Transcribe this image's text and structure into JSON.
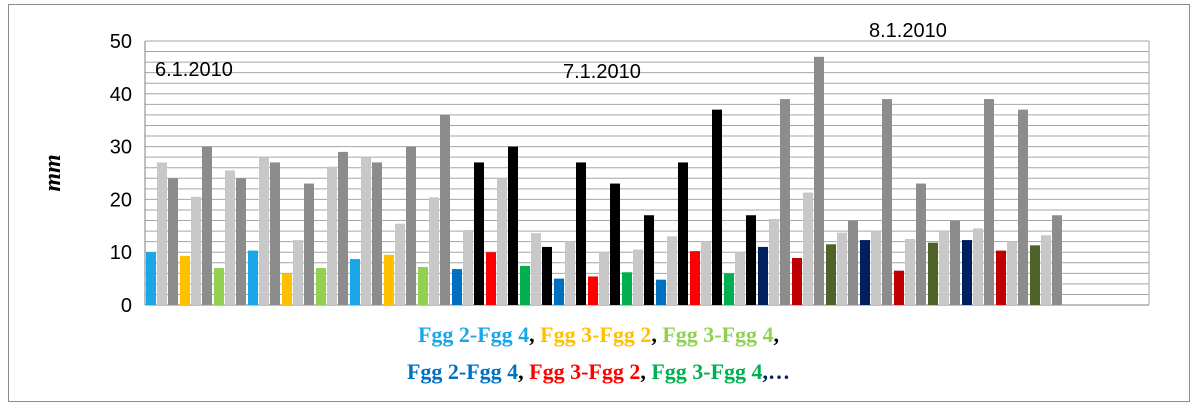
{
  "chart_data": {
    "type": "bar",
    "ylabel": "mm",
    "ylim": [
      0,
      50
    ],
    "yticks": [
      0,
      10,
      20,
      30,
      40,
      50
    ],
    "grid": "horizontal",
    "annotations": [
      {
        "text": "6.1.2010",
        "x": 1
      },
      {
        "text": "7.1.2010",
        "x": 13
      },
      {
        "text": "8.1.2010",
        "x": 22
      }
    ],
    "groups": [
      {
        "x": 1,
        "values": [
          10,
          27,
          24
        ],
        "colors": [
          "#1aa7e8",
          "#c8c8c8",
          "#8c8c8c"
        ]
      },
      {
        "x": 2,
        "values": [
          9.3,
          20.5,
          30
        ],
        "colors": [
          "#ffc000",
          "#c8c8c8",
          "#8c8c8c"
        ]
      },
      {
        "x": 3,
        "values": [
          7,
          25.5,
          24
        ],
        "colors": [
          "#92d050",
          "#c8c8c8",
          "#8c8c8c"
        ]
      },
      {
        "x": 4,
        "values": [
          10.3,
          28,
          27
        ],
        "colors": [
          "#1aa7e8",
          "#c8c8c8",
          "#8c8c8c"
        ]
      },
      {
        "x": 5,
        "values": [
          6,
          12.3,
          23
        ],
        "colors": [
          "#ffc000",
          "#c8c8c8",
          "#8c8c8c"
        ]
      },
      {
        "x": 6,
        "values": [
          7,
          26.2,
          29
        ],
        "colors": [
          "#92d050",
          "#c8c8c8",
          "#8c8c8c"
        ]
      },
      {
        "x": 7,
        "values": [
          8.7,
          28,
          27
        ],
        "colors": [
          "#1aa7e8",
          "#c8c8c8",
          "#8c8c8c"
        ]
      },
      {
        "x": 8,
        "values": [
          9.5,
          15.4,
          30
        ],
        "colors": [
          "#ffc000",
          "#c8c8c8",
          "#8c8c8c"
        ]
      },
      {
        "x": 9,
        "values": [
          7.2,
          20.4,
          36
        ],
        "colors": [
          "#92d050",
          "#c8c8c8",
          "#8c8c8c"
        ]
      },
      {
        "x": 10,
        "values": [
          6.8,
          14.2,
          27
        ],
        "colors": [
          "#0070c0",
          "#c8c8c8",
          "#000000"
        ]
      },
      {
        "x": 11,
        "values": [
          10,
          24,
          30
        ],
        "colors": [
          "#ff0000",
          "#c8c8c8",
          "#000000"
        ]
      },
      {
        "x": 12,
        "values": [
          7.4,
          13.6,
          11
        ],
        "colors": [
          "#00b050",
          "#c8c8c8",
          "#000000"
        ]
      },
      {
        "x": 13,
        "values": [
          5,
          12,
          27
        ],
        "colors": [
          "#0070c0",
          "#c8c8c8",
          "#000000"
        ]
      },
      {
        "x": 14,
        "values": [
          5.4,
          10,
          23
        ],
        "colors": [
          "#ff0000",
          "#c8c8c8",
          "#000000"
        ]
      },
      {
        "x": 15,
        "values": [
          6.2,
          10.5,
          17
        ],
        "colors": [
          "#00b050",
          "#c8c8c8",
          "#000000"
        ]
      },
      {
        "x": 16,
        "values": [
          4.8,
          13,
          27
        ],
        "colors": [
          "#0070c0",
          "#c8c8c8",
          "#000000"
        ]
      },
      {
        "x": 17,
        "values": [
          10.2,
          12,
          37
        ],
        "colors": [
          "#ff0000",
          "#c8c8c8",
          "#000000"
        ]
      },
      {
        "x": 18,
        "values": [
          6,
          10,
          17
        ],
        "colors": [
          "#00b050",
          "#c8c8c8",
          "#000000"
        ]
      },
      {
        "x": 19,
        "values": [
          11,
          16.3,
          39
        ],
        "colors": [
          "#002060",
          "#c8c8c8",
          "#8c8c8c"
        ]
      },
      {
        "x": 20,
        "values": [
          8.9,
          21.3,
          47
        ],
        "colors": [
          "#c00000",
          "#c8c8c8",
          "#8c8c8c"
        ]
      },
      {
        "x": 21,
        "values": [
          11.5,
          13.7,
          16
        ],
        "colors": [
          "#4f6228",
          "#c8c8c8",
          "#8c8c8c"
        ]
      },
      {
        "x": 22,
        "values": [
          12.3,
          14,
          39
        ],
        "colors": [
          "#002060",
          "#c8c8c8",
          "#8c8c8c"
        ]
      },
      {
        "x": 23,
        "values": [
          6.5,
          12.5,
          23
        ],
        "colors": [
          "#c00000",
          "#c8c8c8",
          "#8c8c8c"
        ]
      },
      {
        "x": 24,
        "values": [
          11.8,
          14,
          16
        ],
        "colors": [
          "#4f6228",
          "#c8c8c8",
          "#8c8c8c"
        ]
      },
      {
        "x": 25,
        "values": [
          12.3,
          14.5,
          39
        ],
        "colors": [
          "#002060",
          "#c8c8c8",
          "#8c8c8c"
        ]
      },
      {
        "x": 26,
        "values": [
          10.3,
          12,
          37
        ],
        "colors": [
          "#c00000",
          "#c8c8c8",
          "#8c8c8c"
        ]
      },
      {
        "x": 27,
        "values": [
          11.3,
          13.2,
          17
        ],
        "colors": [
          "#4f6228",
          "#c8c8c8",
          "#8c8c8c"
        ]
      }
    ],
    "legend": {
      "placement": "bottom",
      "lines": [
        {
          "items": [
            {
              "text": "Fgg 2-Fgg 4",
              "color": "#1aa7e8"
            },
            {
              "text": "Fgg 3-Fgg 2",
              "color": "#ffc000"
            },
            {
              "text": "Fgg 3-Fgg 4",
              "color": "#92d050"
            }
          ],
          "trailing": ","
        },
        {
          "items": [
            {
              "text": "Fgg 2-Fgg 4",
              "color": "#0070c0"
            },
            {
              "text": "Fgg 3-Fgg 2",
              "color": "#ff0000"
            },
            {
              "text": "Fgg 3-Fgg 4",
              "color": "#00b050"
            }
          ],
          "trailing": ",…"
        }
      ]
    }
  }
}
